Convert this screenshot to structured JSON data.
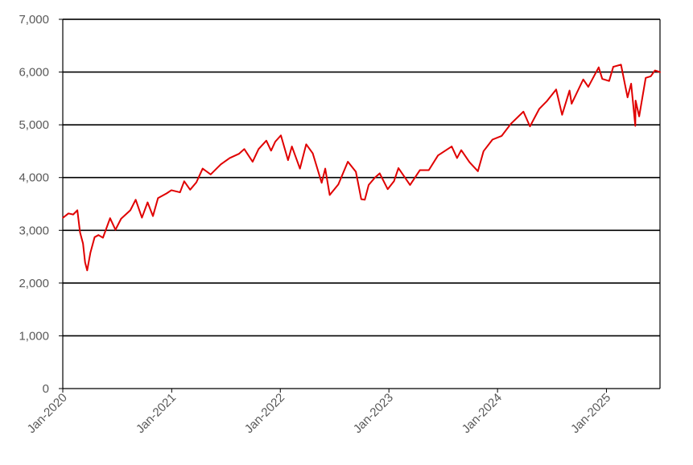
{
  "chart_data": {
    "type": "line",
    "title": "",
    "xlabel": "",
    "ylabel": "",
    "ylim": [
      0,
      7000
    ],
    "xlim": [
      "2020-01-01",
      "2025-06-30"
    ],
    "grid": "horizontal",
    "legend": "none",
    "y_ticks": [
      {
        "value": 0,
        "label": "0"
      },
      {
        "value": 1000,
        "label": "1,000"
      },
      {
        "value": 2000,
        "label": "2,000"
      },
      {
        "value": 3000,
        "label": "3,000"
      },
      {
        "value": 4000,
        "label": "4,000"
      },
      {
        "value": 5000,
        "label": "5,000"
      },
      {
        "value": 6000,
        "label": "6,000"
      },
      {
        "value": 7000,
        "label": "7,000"
      }
    ],
    "x_ticks": [
      {
        "value": "2020-01-01",
        "label": "Jan-2020"
      },
      {
        "value": "2021-01-01",
        "label": "Jan-2021"
      },
      {
        "value": "2022-01-01",
        "label": "Jan-2022"
      },
      {
        "value": "2023-01-01",
        "label": "Jan-2023"
      },
      {
        "value": "2024-01-01",
        "label": "Jan-2024"
      },
      {
        "value": "2025-01-01",
        "label": "Jan-2025"
      }
    ],
    "series": [
      {
        "color": "#e00000",
        "points": [
          [
            "2020-01-02",
            3240
          ],
          [
            "2020-01-20",
            3320
          ],
          [
            "2020-02-05",
            3300
          ],
          [
            "2020-02-19",
            3380
          ],
          [
            "2020-02-28",
            2960
          ],
          [
            "2020-03-09",
            2750
          ],
          [
            "2020-03-16",
            2390
          ],
          [
            "2020-03-23",
            2240
          ],
          [
            "2020-04-03",
            2580
          ],
          [
            "2020-04-17",
            2870
          ],
          [
            "2020-04-30",
            2910
          ],
          [
            "2020-05-15",
            2860
          ],
          [
            "2020-06-08",
            3230
          ],
          [
            "2020-06-26",
            3010
          ],
          [
            "2020-07-15",
            3220
          ],
          [
            "2020-08-15",
            3380
          ],
          [
            "2020-09-02",
            3580
          ],
          [
            "2020-09-23",
            3240
          ],
          [
            "2020-10-12",
            3530
          ],
          [
            "2020-10-30",
            3270
          ],
          [
            "2020-11-16",
            3610
          ],
          [
            "2020-12-15",
            3700
          ],
          [
            "2020-12-31",
            3760
          ],
          [
            "2021-01-29",
            3720
          ],
          [
            "2021-02-12",
            3930
          ],
          [
            "2021-03-04",
            3770
          ],
          [
            "2021-03-25",
            3910
          ],
          [
            "2021-04-15",
            4170
          ],
          [
            "2021-05-12",
            4060
          ],
          [
            "2021-06-15",
            4250
          ],
          [
            "2021-07-15",
            4370
          ],
          [
            "2021-08-15",
            4450
          ],
          [
            "2021-09-02",
            4540
          ],
          [
            "2021-09-30",
            4300
          ],
          [
            "2021-10-20",
            4540
          ],
          [
            "2021-11-15",
            4700
          ],
          [
            "2021-12-01",
            4510
          ],
          [
            "2021-12-15",
            4680
          ],
          [
            "2022-01-03",
            4800
          ],
          [
            "2022-01-27",
            4330
          ],
          [
            "2022-02-09",
            4590
          ],
          [
            "2022-03-08",
            4170
          ],
          [
            "2022-03-29",
            4630
          ],
          [
            "2022-04-20",
            4460
          ],
          [
            "2022-05-20",
            3900
          ],
          [
            "2022-06-01",
            4170
          ],
          [
            "2022-06-16",
            3670
          ],
          [
            "2022-07-15",
            3870
          ],
          [
            "2022-08-16",
            4300
          ],
          [
            "2022-09-12",
            4110
          ],
          [
            "2022-09-30",
            3590
          ],
          [
            "2022-10-12",
            3580
          ],
          [
            "2022-10-25",
            3860
          ],
          [
            "2022-11-15",
            4000
          ],
          [
            "2022-12-01",
            4080
          ],
          [
            "2022-12-28",
            3780
          ],
          [
            "2023-01-18",
            3930
          ],
          [
            "2023-02-02",
            4180
          ],
          [
            "2023-03-13",
            3860
          ],
          [
            "2023-04-15",
            4140
          ],
          [
            "2023-05-15",
            4140
          ],
          [
            "2023-06-15",
            4420
          ],
          [
            "2023-07-31",
            4590
          ],
          [
            "2023-08-18",
            4370
          ],
          [
            "2023-09-01",
            4520
          ],
          [
            "2023-09-29",
            4290
          ],
          [
            "2023-10-27",
            4120
          ],
          [
            "2023-11-15",
            4500
          ],
          [
            "2023-12-15",
            4720
          ],
          [
            "2024-01-15",
            4790
          ],
          [
            "2024-02-15",
            5020
          ],
          [
            "2024-03-28",
            5250
          ],
          [
            "2024-04-19",
            4970
          ],
          [
            "2024-05-20",
            5300
          ],
          [
            "2024-06-15",
            5450
          ],
          [
            "2024-07-16",
            5670
          ],
          [
            "2024-08-05",
            5190
          ],
          [
            "2024-08-30",
            5650
          ],
          [
            "2024-09-06",
            5400
          ],
          [
            "2024-10-15",
            5860
          ],
          [
            "2024-11-01",
            5720
          ],
          [
            "2024-12-06",
            6090
          ],
          [
            "2024-12-18",
            5870
          ],
          [
            "2025-01-10",
            5830
          ],
          [
            "2025-01-24",
            6100
          ],
          [
            "2025-02-19",
            6140
          ],
          [
            "2025-03-13",
            5520
          ],
          [
            "2025-03-25",
            5780
          ],
          [
            "2025-04-08",
            4980
          ],
          [
            "2025-04-09",
            5460
          ],
          [
            "2025-04-21",
            5160
          ],
          [
            "2025-05-13",
            5890
          ],
          [
            "2025-05-30",
            5920
          ],
          [
            "2025-06-13",
            6030
          ],
          [
            "2025-06-30",
            6000
          ]
        ]
      }
    ]
  }
}
